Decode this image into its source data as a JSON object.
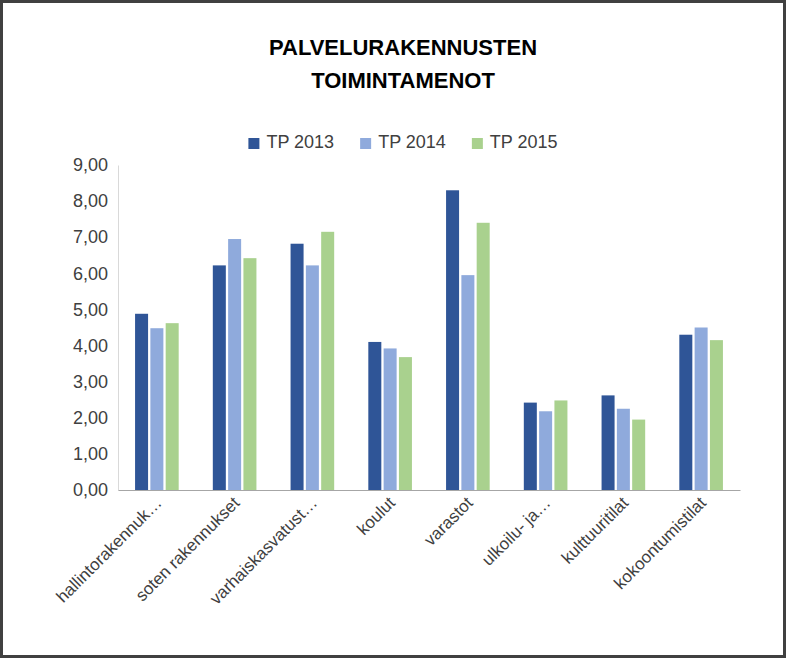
{
  "chart_data": {
    "type": "bar",
    "title": "PALVELURAKENNUSTEN TOIMINTAMENOT",
    "categories": [
      "hallintorakennuk…",
      "soten rakennukset",
      "varhaiskasvatust…",
      "koulut",
      "varastot",
      "ulkoilu- ja…",
      "kulttuuritilat",
      "kokoontumistilat"
    ],
    "series": [
      {
        "name": "TP 2013",
        "color": "#2f5597",
        "values": [
          4.88,
          6.22,
          6.82,
          4.1,
          8.3,
          2.42,
          2.62,
          4.3
        ]
      },
      {
        "name": "TP 2014",
        "color": "#8faadc",
        "values": [
          4.48,
          6.95,
          6.22,
          3.92,
          5.95,
          2.18,
          2.25,
          4.5
        ]
      },
      {
        "name": "TP 2015",
        "color": "#a9d18e",
        "values": [
          4.62,
          6.42,
          7.15,
          3.68,
          7.4,
          2.48,
          1.95,
          4.15
        ]
      }
    ],
    "ylim": [
      0,
      9
    ],
    "yticks": [
      {
        "value": 0,
        "label": "0,00"
      },
      {
        "value": 1,
        "label": "1,00"
      },
      {
        "value": 2,
        "label": "2,00"
      },
      {
        "value": 3,
        "label": "3,00"
      },
      {
        "value": 4,
        "label": "4,00"
      },
      {
        "value": 5,
        "label": "5,00"
      },
      {
        "value": 6,
        "label": "6,00"
      },
      {
        "value": 7,
        "label": "7,00"
      },
      {
        "value": 8,
        "label": "8,00"
      },
      {
        "value": 9,
        "label": "9,00"
      }
    ],
    "grid": false,
    "legend": "top"
  }
}
